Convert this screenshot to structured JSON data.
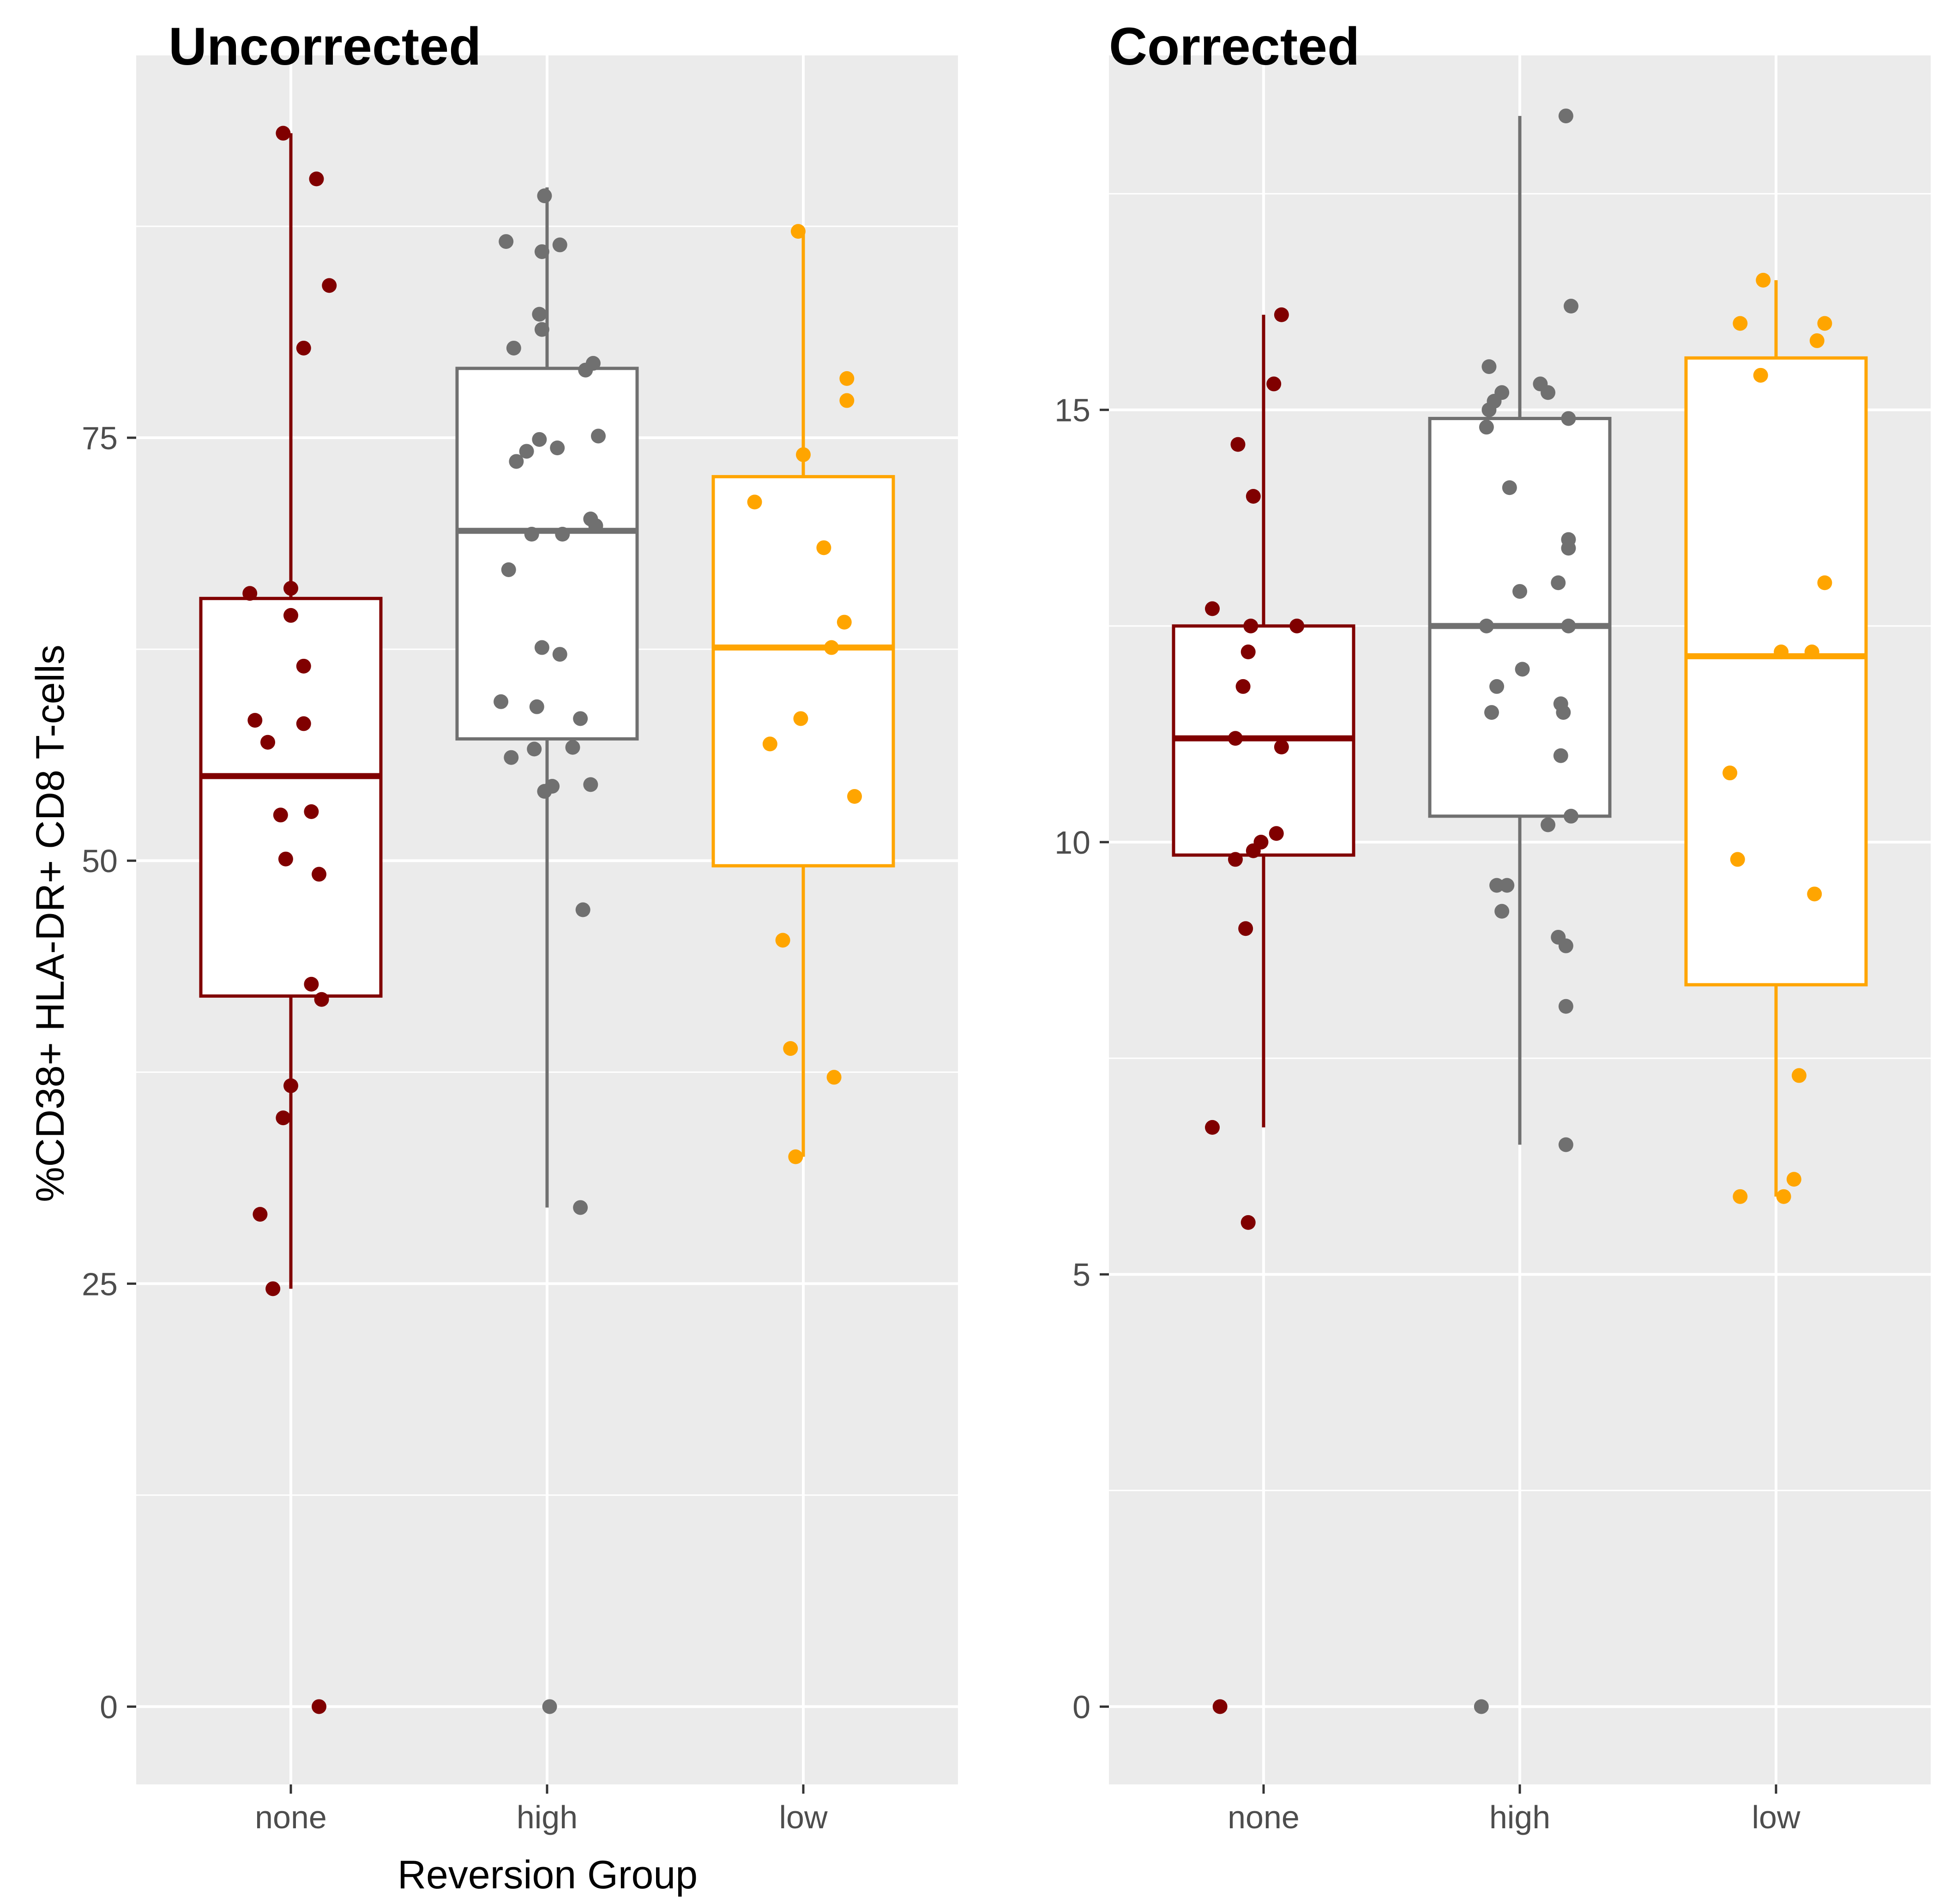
{
  "figure": {
    "ylabel": "%CD38+ HLA-DR+ CD8 T-cells",
    "xlabel": "Reversion Group",
    "group_colors": {
      "none": "#800000",
      "high": "#707070",
      "low": "#FFA500"
    },
    "panel_background": "#EBEBEB",
    "grid_color": "#FFFFFF"
  },
  "chart_data": [
    {
      "type": "boxplot",
      "title": "Uncorrected",
      "categories": [
        "none",
        "high",
        "low"
      ],
      "ylim": [
        -4.6,
        97.6
      ],
      "yticks": [
        0,
        25,
        50,
        75
      ],
      "ytick_labels": [
        "0",
        "25",
        "50",
        "75"
      ],
      "minor_yticks": [
        12.5,
        37.5,
        62.5,
        87.5
      ],
      "boxes": [
        {
          "group": "none",
          "whisker_low": 24.7,
          "q1": 42.0,
          "median": 55.0,
          "q3": 65.5,
          "whisker_high": 93.0
        },
        {
          "group": "high",
          "whisker_low": 29.5,
          "q1": 57.2,
          "median": 69.5,
          "q3": 79.1,
          "whisker_high": 89.8
        },
        {
          "group": "low",
          "whisker_low": 32.5,
          "q1": 49.7,
          "median": 62.6,
          "q3": 72.7,
          "whisker_high": 87.2
        }
      ],
      "points": [
        {
          "group": "none",
          "jitter": -0.03,
          "y": 93.0
        },
        {
          "group": "none",
          "jitter": 0.1,
          "y": 90.3
        },
        {
          "group": "none",
          "jitter": 0.15,
          "y": 84.0
        },
        {
          "group": "none",
          "jitter": 0.05,
          "y": 80.3
        },
        {
          "group": "none",
          "jitter": -0.16,
          "y": 65.8
        },
        {
          "group": "none",
          "jitter": 0.0,
          "y": 66.1
        },
        {
          "group": "none",
          "jitter": 0.0,
          "y": 64.5
        },
        {
          "group": "none",
          "jitter": 0.05,
          "y": 61.5
        },
        {
          "group": "none",
          "jitter": -0.14,
          "y": 58.3
        },
        {
          "group": "none",
          "jitter": 0.05,
          "y": 58.1
        },
        {
          "group": "none",
          "jitter": -0.09,
          "y": 57.0
        },
        {
          "group": "none",
          "jitter": -0.04,
          "y": 52.7
        },
        {
          "group": "none",
          "jitter": 0.08,
          "y": 52.9
        },
        {
          "group": "none",
          "jitter": -0.02,
          "y": 50.1
        },
        {
          "group": "none",
          "jitter": 0.11,
          "y": 49.2
        },
        {
          "group": "none",
          "jitter": 0.08,
          "y": 42.7
        },
        {
          "group": "none",
          "jitter": 0.12,
          "y": 41.8
        },
        {
          "group": "none",
          "jitter": 0.0,
          "y": 36.7
        },
        {
          "group": "none",
          "jitter": -0.03,
          "y": 34.8
        },
        {
          "group": "none",
          "jitter": -0.12,
          "y": 29.1
        },
        {
          "group": "none",
          "jitter": -0.07,
          "y": 24.7
        },
        {
          "group": "none",
          "jitter": 0.11,
          "y": 0.0
        },
        {
          "group": "high",
          "jitter": -0.01,
          "y": 89.3
        },
        {
          "group": "high",
          "jitter": -0.16,
          "y": 86.6
        },
        {
          "group": "high",
          "jitter": 0.05,
          "y": 86.4
        },
        {
          "group": "high",
          "jitter": -0.02,
          "y": 86.0
        },
        {
          "group": "high",
          "jitter": -0.03,
          "y": 82.3
        },
        {
          "group": "high",
          "jitter": -0.02,
          "y": 81.4
        },
        {
          "group": "high",
          "jitter": -0.13,
          "y": 80.3
        },
        {
          "group": "high",
          "jitter": 0.18,
          "y": 79.4
        },
        {
          "group": "high",
          "jitter": 0.15,
          "y": 79.0
        },
        {
          "group": "high",
          "jitter": 0.2,
          "y": 75.1
        },
        {
          "group": "high",
          "jitter": -0.03,
          "y": 74.9
        },
        {
          "group": "high",
          "jitter": 0.04,
          "y": 74.4
        },
        {
          "group": "high",
          "jitter": -0.08,
          "y": 74.2
        },
        {
          "group": "high",
          "jitter": -0.12,
          "y": 73.6
        },
        {
          "group": "high",
          "jitter": 0.17,
          "y": 70.2
        },
        {
          "group": "high",
          "jitter": 0.19,
          "y": 69.8
        },
        {
          "group": "high",
          "jitter": -0.06,
          "y": 69.3
        },
        {
          "group": "high",
          "jitter": 0.06,
          "y": 69.3
        },
        {
          "group": "high",
          "jitter": -0.15,
          "y": 67.2
        },
        {
          "group": "high",
          "jitter": -0.02,
          "y": 62.6
        },
        {
          "group": "high",
          "jitter": 0.05,
          "y": 62.2
        },
        {
          "group": "high",
          "jitter": -0.18,
          "y": 59.4
        },
        {
          "group": "high",
          "jitter": -0.04,
          "y": 59.1
        },
        {
          "group": "high",
          "jitter": 0.13,
          "y": 58.4
        },
        {
          "group": "high",
          "jitter": 0.1,
          "y": 56.7
        },
        {
          "group": "high",
          "jitter": -0.05,
          "y": 56.6
        },
        {
          "group": "high",
          "jitter": -0.14,
          "y": 56.1
        },
        {
          "group": "high",
          "jitter": 0.02,
          "y": 54.4
        },
        {
          "group": "high",
          "jitter": 0.17,
          "y": 54.5
        },
        {
          "group": "high",
          "jitter": -0.01,
          "y": 54.1
        },
        {
          "group": "high",
          "jitter": 0.14,
          "y": 47.1
        },
        {
          "group": "high",
          "jitter": 0.13,
          "y": 29.5
        },
        {
          "group": "high",
          "jitter": 0.01,
          "y": 0.0
        },
        {
          "group": "low",
          "jitter": -0.02,
          "y": 87.2
        },
        {
          "group": "low",
          "jitter": 0.17,
          "y": 78.5
        },
        {
          "group": "low",
          "jitter": 0.17,
          "y": 77.2
        },
        {
          "group": "low",
          "jitter": 0.0,
          "y": 74.0
        },
        {
          "group": "low",
          "jitter": -0.19,
          "y": 71.2
        },
        {
          "group": "low",
          "jitter": 0.08,
          "y": 68.5
        },
        {
          "group": "low",
          "jitter": 0.16,
          "y": 64.1
        },
        {
          "group": "low",
          "jitter": 0.11,
          "y": 62.6
        },
        {
          "group": "low",
          "jitter": -0.01,
          "y": 58.4
        },
        {
          "group": "low",
          "jitter": -0.13,
          "y": 56.9
        },
        {
          "group": "low",
          "jitter": 0.2,
          "y": 53.8
        },
        {
          "group": "low",
          "jitter": -0.08,
          "y": 45.3
        },
        {
          "group": "low",
          "jitter": -0.05,
          "y": 38.9
        },
        {
          "group": "low",
          "jitter": 0.12,
          "y": 37.2
        },
        {
          "group": "low",
          "jitter": -0.03,
          "y": 32.5
        }
      ]
    },
    {
      "type": "boxplot",
      "title": "Corrected",
      "categories": [
        "none",
        "high",
        "low"
      ],
      "ylim": [
        -0.9,
        19.1
      ],
      "yticks": [
        0,
        5,
        10,
        15
      ],
      "ytick_labels": [
        "0",
        "5",
        "10",
        "15"
      ],
      "minor_yticks": [
        2.5,
        7.5,
        12.5,
        17.5
      ],
      "boxes": [
        {
          "group": "none",
          "whisker_low": 6.7,
          "q1": 9.85,
          "median": 11.2,
          "q3": 12.5,
          "whisker_high": 16.1
        },
        {
          "group": "high",
          "whisker_low": 6.5,
          "q1": 10.3,
          "median": 12.5,
          "q3": 14.9,
          "whisker_high": 18.4
        },
        {
          "group": "low",
          "whisker_low": 5.9,
          "q1": 8.35,
          "median": 12.15,
          "q3": 15.6,
          "whisker_high": 16.5
        }
      ],
      "points": [
        {
          "group": "none",
          "jitter": 0.07,
          "y": 16.1
        },
        {
          "group": "none",
          "jitter": 0.04,
          "y": 15.3
        },
        {
          "group": "none",
          "jitter": -0.1,
          "y": 14.6
        },
        {
          "group": "none",
          "jitter": -0.04,
          "y": 14.0
        },
        {
          "group": "none",
          "jitter": -0.2,
          "y": 12.7
        },
        {
          "group": "none",
          "jitter": -0.05,
          "y": 12.5
        },
        {
          "group": "none",
          "jitter": 0.13,
          "y": 12.5
        },
        {
          "group": "none",
          "jitter": -0.06,
          "y": 12.2
        },
        {
          "group": "none",
          "jitter": -0.08,
          "y": 11.8
        },
        {
          "group": "none",
          "jitter": -0.11,
          "y": 11.2
        },
        {
          "group": "none",
          "jitter": 0.07,
          "y": 11.1
        },
        {
          "group": "none",
          "jitter": 0.05,
          "y": 10.1
        },
        {
          "group": "none",
          "jitter": -0.01,
          "y": 10.0
        },
        {
          "group": "none",
          "jitter": -0.04,
          "y": 9.9
        },
        {
          "group": "none",
          "jitter": -0.11,
          "y": 9.8
        },
        {
          "group": "none",
          "jitter": -0.07,
          "y": 9.0
        },
        {
          "group": "none",
          "jitter": -0.2,
          "y": 6.7
        },
        {
          "group": "none",
          "jitter": -0.06,
          "y": 5.6
        },
        {
          "group": "none",
          "jitter": -0.17,
          "y": 0.0
        },
        {
          "group": "high",
          "jitter": 0.18,
          "y": 18.4
        },
        {
          "group": "high",
          "jitter": 0.2,
          "y": 16.2
        },
        {
          "group": "high",
          "jitter": -0.12,
          "y": 15.5
        },
        {
          "group": "high",
          "jitter": 0.08,
          "y": 15.3
        },
        {
          "group": "high",
          "jitter": -0.07,
          "y": 15.2
        },
        {
          "group": "high",
          "jitter": 0.11,
          "y": 15.2
        },
        {
          "group": "high",
          "jitter": -0.1,
          "y": 15.1
        },
        {
          "group": "high",
          "jitter": -0.12,
          "y": 15.0
        },
        {
          "group": "high",
          "jitter": 0.19,
          "y": 14.9
        },
        {
          "group": "high",
          "jitter": -0.13,
          "y": 14.8
        },
        {
          "group": "high",
          "jitter": -0.04,
          "y": 14.1
        },
        {
          "group": "high",
          "jitter": 0.19,
          "y": 13.5
        },
        {
          "group": "high",
          "jitter": 0.19,
          "y": 13.4
        },
        {
          "group": "high",
          "jitter": 0.15,
          "y": 13.0
        },
        {
          "group": "high",
          "jitter": 0.0,
          "y": 12.9
        },
        {
          "group": "high",
          "jitter": -0.13,
          "y": 12.5
        },
        {
          "group": "high",
          "jitter": 0.19,
          "y": 12.5
        },
        {
          "group": "high",
          "jitter": 0.01,
          "y": 12.0
        },
        {
          "group": "high",
          "jitter": -0.09,
          "y": 11.8
        },
        {
          "group": "high",
          "jitter": 0.16,
          "y": 11.6
        },
        {
          "group": "high",
          "jitter": -0.11,
          "y": 11.5
        },
        {
          "group": "high",
          "jitter": 0.17,
          "y": 11.5
        },
        {
          "group": "high",
          "jitter": 0.16,
          "y": 11.0
        },
        {
          "group": "high",
          "jitter": 0.2,
          "y": 10.3
        },
        {
          "group": "high",
          "jitter": 0.11,
          "y": 10.2
        },
        {
          "group": "high",
          "jitter": -0.09,
          "y": 9.5
        },
        {
          "group": "high",
          "jitter": -0.05,
          "y": 9.5
        },
        {
          "group": "high",
          "jitter": -0.07,
          "y": 9.2
        },
        {
          "group": "high",
          "jitter": 0.15,
          "y": 8.9
        },
        {
          "group": "high",
          "jitter": 0.18,
          "y": 8.8
        },
        {
          "group": "high",
          "jitter": 0.18,
          "y": 8.1
        },
        {
          "group": "high",
          "jitter": 0.18,
          "y": 6.5
        },
        {
          "group": "high",
          "jitter": -0.15,
          "y": 0.0
        },
        {
          "group": "low",
          "jitter": -0.05,
          "y": 16.5
        },
        {
          "group": "low",
          "jitter": -0.14,
          "y": 16.0
        },
        {
          "group": "low",
          "jitter": 0.19,
          "y": 16.0
        },
        {
          "group": "low",
          "jitter": 0.16,
          "y": 15.8
        },
        {
          "group": "low",
          "jitter": -0.06,
          "y": 15.4
        },
        {
          "group": "low",
          "jitter": 0.19,
          "y": 13.0
        },
        {
          "group": "low",
          "jitter": 0.02,
          "y": 12.2
        },
        {
          "group": "low",
          "jitter": 0.14,
          "y": 12.2
        },
        {
          "group": "low",
          "jitter": -0.18,
          "y": 10.8
        },
        {
          "group": "low",
          "jitter": -0.15,
          "y": 9.8
        },
        {
          "group": "low",
          "jitter": 0.15,
          "y": 9.4
        },
        {
          "group": "low",
          "jitter": 0.09,
          "y": 7.3
        },
        {
          "group": "low",
          "jitter": 0.07,
          "y": 6.1
        },
        {
          "group": "low",
          "jitter": -0.14,
          "y": 5.9
        },
        {
          "group": "low",
          "jitter": 0.03,
          "y": 5.9
        }
      ]
    }
  ]
}
